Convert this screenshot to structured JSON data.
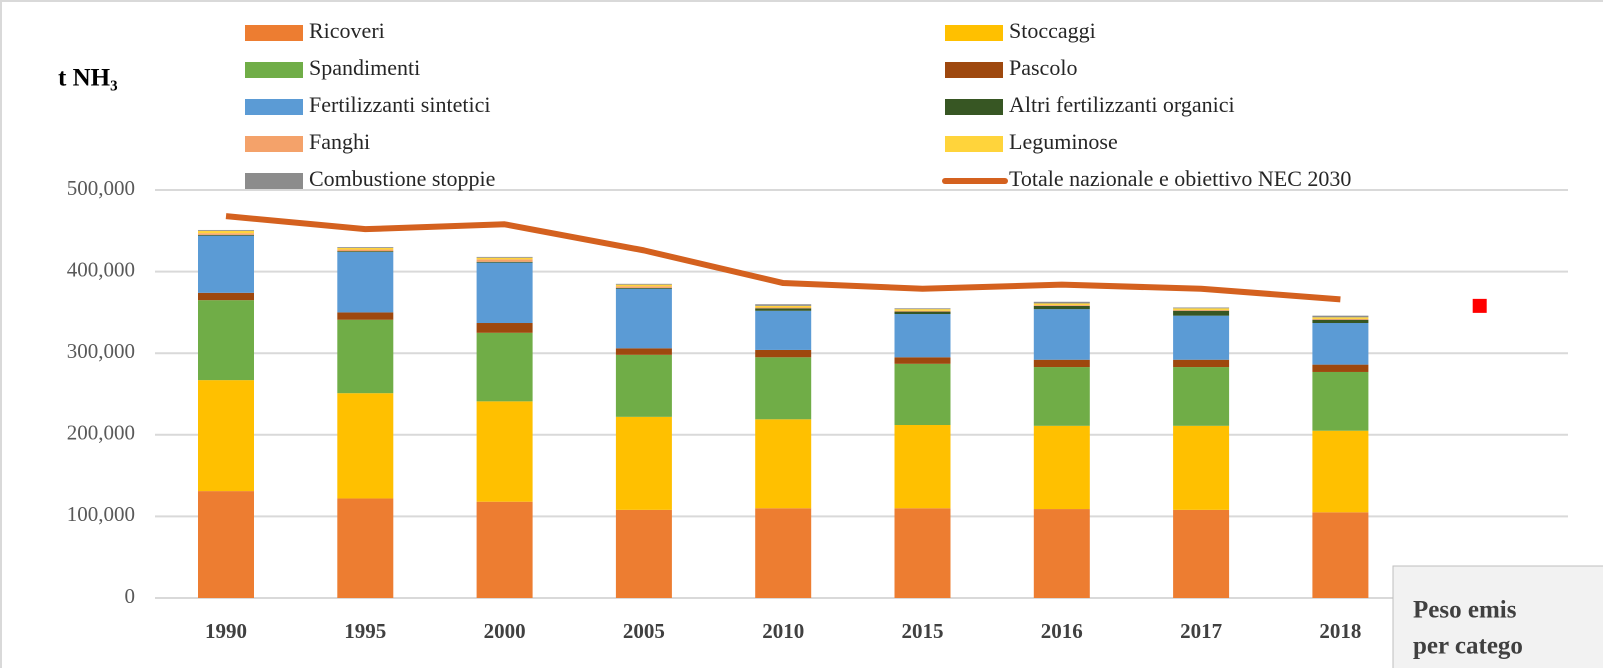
{
  "chart_data": {
    "type": "stacked_bar_line",
    "y_label": "t NH₃",
    "categories": [
      "1990",
      "1995",
      "2000",
      "2005",
      "2010",
      "2015",
      "2016",
      "2017",
      "2018",
      null
    ],
    "ylim": [
      0,
      500000
    ],
    "yticks": [
      {
        "value": 0,
        "label": "0"
      },
      {
        "value": 100000,
        "label": "100,000"
      },
      {
        "value": 200000,
        "label": "200,000"
      },
      {
        "value": 300000,
        "label": "300,000"
      },
      {
        "value": 400000,
        "label": "400,000"
      },
      {
        "value": 500000,
        "label": "500,000"
      }
    ],
    "grid": true,
    "series": [
      {
        "name": "Ricoveri",
        "color": "#ed7d31",
        "values": [
          131000,
          122000,
          118000,
          108000,
          110000,
          110000,
          109000,
          108000,
          105000,
          null
        ]
      },
      {
        "name": "Stoccaggi",
        "color": "#ffc000",
        "values": [
          136000,
          129000,
          123000,
          114000,
          109000,
          102000,
          102000,
          103000,
          100000,
          null
        ]
      },
      {
        "name": "Spandimenti",
        "color": "#70ad47",
        "values": [
          98000,
          90000,
          84000,
          76000,
          76000,
          75000,
          72000,
          72000,
          72000,
          null
        ]
      },
      {
        "name": "Pascolo",
        "color": "#9e480e",
        "values": [
          9000,
          9000,
          12000,
          8000,
          9000,
          8000,
          9000,
          9000,
          9000,
          null
        ]
      },
      {
        "name": "Fertilizzanti sintetici",
        "color": "#5b9bd5",
        "values": [
          70000,
          74000,
          74000,
          73000,
          48000,
          53000,
          62000,
          54000,
          51000,
          null
        ]
      },
      {
        "name": "Altri fertilizzanti organici",
        "color": "#375623",
        "values": [
          1000,
          1000,
          1000,
          1000,
          3000,
          3000,
          4000,
          6000,
          4000,
          null
        ]
      },
      {
        "name": "Fanghi",
        "color": "#f4a26a",
        "values": [
          2000,
          2000,
          3000,
          2000,
          1000,
          1000,
          1000,
          1000,
          1000,
          null
        ]
      },
      {
        "name": "Leguminose",
        "color": "#ffd43b",
        "values": [
          3000,
          2000,
          2000,
          2000,
          2000,
          2000,
          2000,
          2000,
          2000,
          null
        ]
      },
      {
        "name": "Combustione stoppie",
        "color": "#8c8c8c",
        "values": [
          1000,
          1000,
          1000,
          1000,
          2000,
          1000,
          2000,
          1000,
          2000,
          null
        ]
      },
      {
        "name": "Totale nazionale e obiettivo NEC 2030",
        "color": "#d4611f",
        "kind": "line",
        "values": [
          468000,
          452000,
          458000,
          426000,
          386000,
          379000,
          384000,
          379000,
          366000,
          null
        ]
      }
    ],
    "target": {
      "color": "#ff0000",
      "values": [
        null,
        null,
        null,
        null,
        null,
        null,
        null,
        null,
        null,
        358000
      ]
    },
    "note_lines": [
      "Peso emis",
      "per catego"
    ]
  }
}
